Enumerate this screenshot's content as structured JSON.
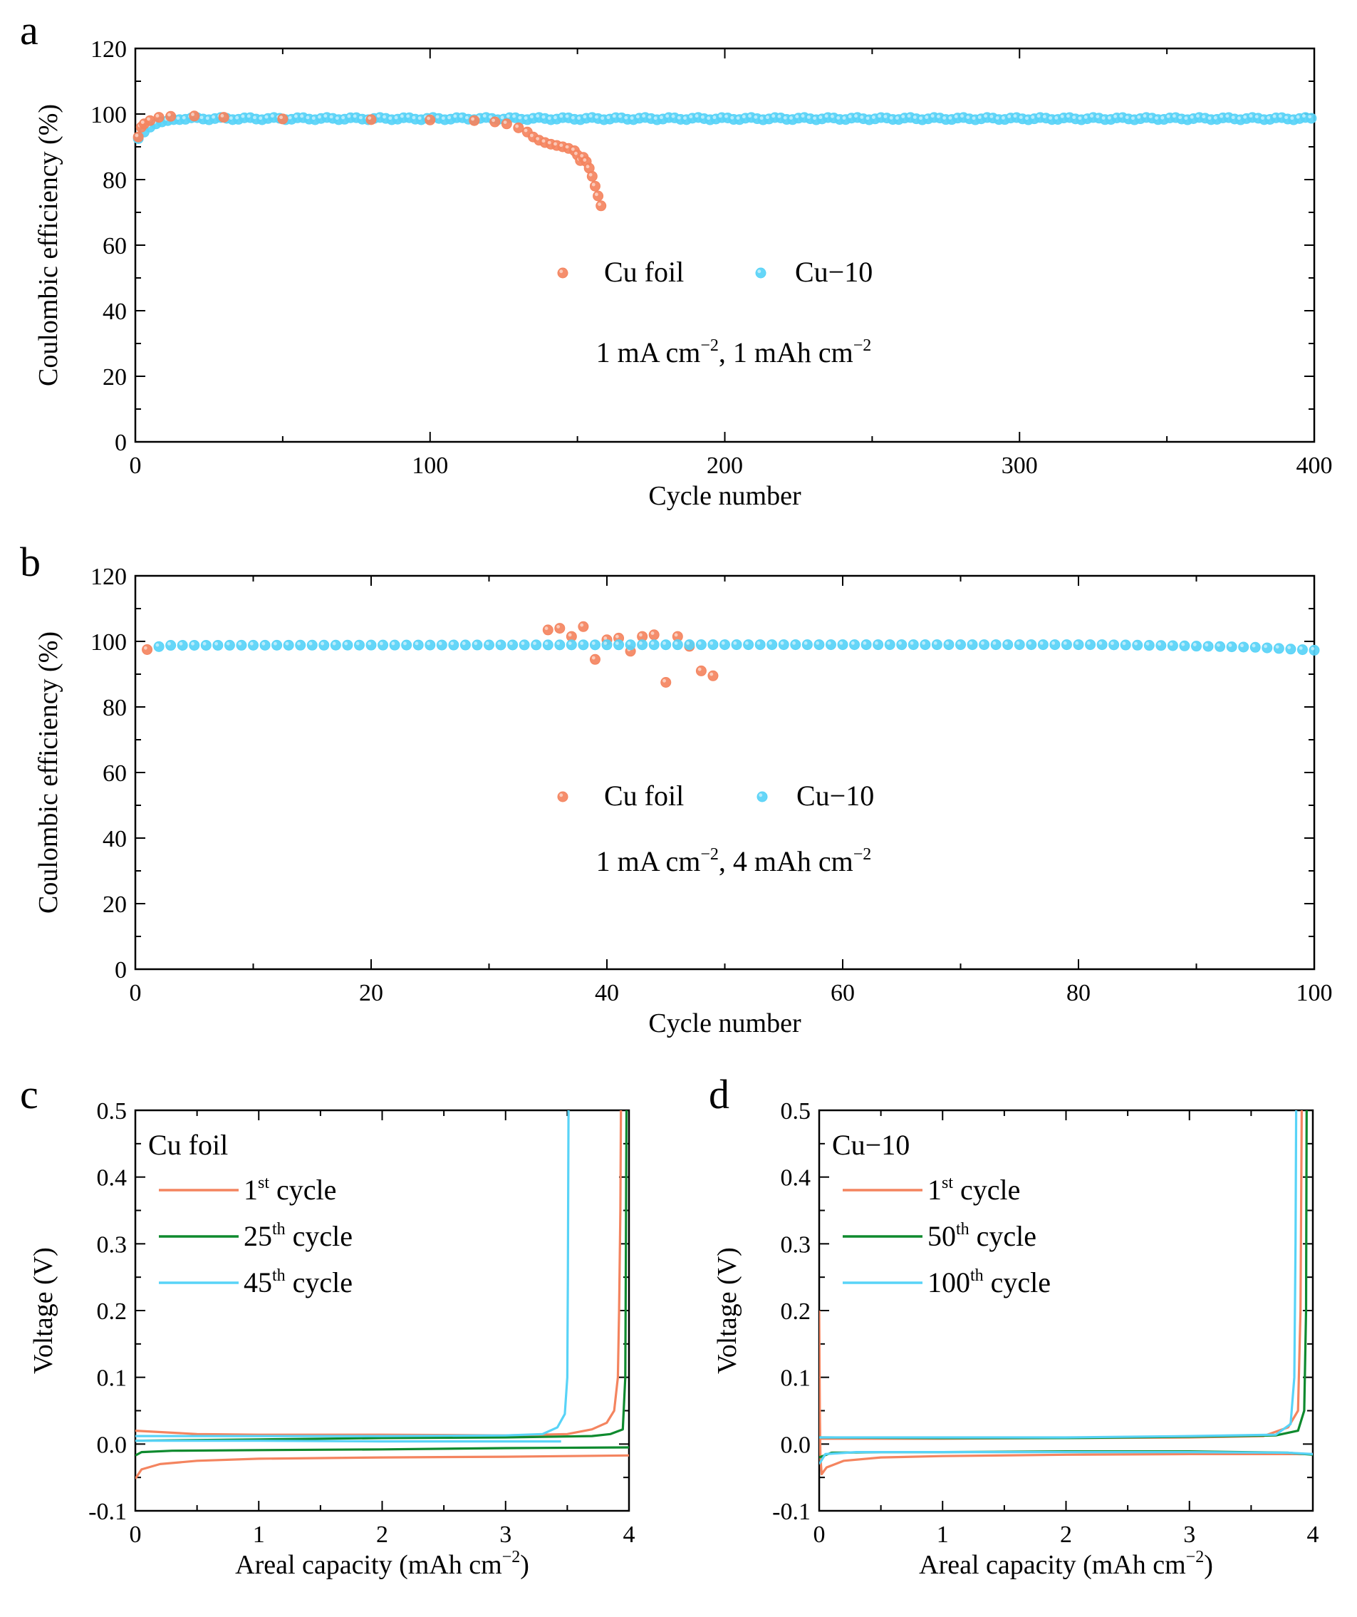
{
  "colors": {
    "cu_foil": "#F4845F",
    "cu10": "#58D3F7",
    "green": "#0E8A2E",
    "axis": "#000000"
  },
  "chart_data": [
    {
      "panel": "a",
      "type": "scatter",
      "xlabel": "Cycle number",
      "ylabel": "Coulombic efficiency (%)",
      "xlim": [
        0,
        400
      ],
      "ylim": [
        0,
        120
      ],
      "xticks": [
        0,
        100,
        200,
        300,
        400
      ],
      "yticks": [
        0,
        20,
        40,
        60,
        80,
        100,
        120
      ],
      "annotation": {
        "main": "1 mA  cm",
        "sup1": "−2",
        "mid": ", 1 mAh  cm",
        "sup2": "−2"
      },
      "legend": [
        "Cu foil",
        "Cu−10"
      ],
      "series": [
        {
          "name": "Cu foil",
          "x": [
            1,
            2,
            3,
            5,
            8,
            12,
            20,
            30,
            50,
            80,
            100,
            115,
            122,
            126,
            130,
            133,
            135,
            137,
            139,
            141,
            143,
            145,
            147,
            149,
            150,
            151,
            152,
            153,
            154,
            155,
            156,
            157,
            158
          ],
          "y": [
            93,
            96,
            97,
            98,
            99,
            99.3,
            99.4,
            99,
            98.5,
            98.3,
            98.2,
            98,
            97.6,
            97,
            95.8,
            94.5,
            93,
            92,
            91.3,
            90.8,
            90.4,
            90,
            89.5,
            88.8,
            87.5,
            85.8,
            86.8,
            85.5,
            83.5,
            81,
            78,
            75,
            72
          ]
        },
        {
          "name": "Cu−10",
          "x_start": 1,
          "x_end": 400,
          "x_step": 2,
          "y_start": [
            92.5,
            94.5,
            96,
            97,
            97.6,
            98,
            98.3
          ],
          "y_plateau": 98.6
        }
      ]
    },
    {
      "panel": "b",
      "type": "scatter",
      "xlabel": "Cycle number",
      "ylabel": "Coulombic efficiency (%)",
      "xlim": [
        0,
        100
      ],
      "ylim": [
        0,
        120
      ],
      "xticks": [
        0,
        20,
        40,
        60,
        80,
        100
      ],
      "yticks": [
        0,
        20,
        40,
        60,
        80,
        100,
        120
      ],
      "annotation": {
        "main": "1 mA  cm",
        "sup1": "−2",
        "mid": ", 4 mAh  cm",
        "sup2": "−2"
      },
      "legend": [
        "Cu foil",
        "Cu−10"
      ],
      "series": [
        {
          "name": "Cu foil",
          "x": [
            1,
            35,
            36,
            37,
            38,
            39,
            40,
            41,
            42,
            43,
            44,
            45,
            46,
            47,
            48,
            49
          ],
          "y": [
            97.5,
            103.5,
            104,
            101.5,
            104.5,
            94.5,
            100.5,
            101,
            97,
            101.5,
            102,
            87.5,
            101.5,
            98.5,
            91,
            89.5
          ]
        },
        {
          "name": "Cu−10",
          "x_start": 1,
          "x_end": 100,
          "x_step": 1,
          "y_profile": [
            [
              1,
              98.0
            ],
            [
              3,
              98.8
            ],
            [
              50,
              99.0
            ],
            [
              82,
              99.0
            ],
            [
              88,
              98.7
            ],
            [
              95,
              98.2
            ],
            [
              100,
              97.3
            ]
          ]
        }
      ]
    },
    {
      "panel": "c",
      "type": "line",
      "title": "Cu foil",
      "xlabel": "Areal capacity (mAh cm",
      "xlabel_sup": "−2",
      "xlabel_end": ")",
      "ylabel": "Voltage (V)",
      "xlim": [
        0,
        4
      ],
      "ylim": [
        -0.1,
        0.5
      ],
      "xticks": [
        0,
        1,
        2,
        3,
        4
      ],
      "yticks": [
        -0.1,
        0.0,
        0.1,
        0.2,
        0.3,
        0.4,
        0.5
      ],
      "ytick_labels": [
        "-0.1",
        "0.0",
        "0.1",
        "0.2",
        "0.3",
        "0.4",
        "0.5"
      ],
      "series": [
        {
          "name": "1st cycle",
          "label_num": "1",
          "label_sup": "st",
          "label_rest": " cycle",
          "color_key": "cu_foil",
          "discharge": [
            [
              0,
              -0.052
            ],
            [
              0.05,
              -0.038
            ],
            [
              0.2,
              -0.03
            ],
            [
              0.5,
              -0.025
            ],
            [
              1,
              -0.022
            ],
            [
              2,
              -0.02
            ],
            [
              3,
              -0.019
            ],
            [
              4,
              -0.017
            ]
          ],
          "charge": [
            [
              0,
              0.02
            ],
            [
              0.2,
              0.018
            ],
            [
              0.5,
              0.015
            ],
            [
              1,
              0.014
            ],
            [
              2,
              0.014
            ],
            [
              3,
              0.013
            ],
            [
              3.5,
              0.015
            ],
            [
              3.7,
              0.022
            ],
            [
              3.82,
              0.032
            ],
            [
              3.88,
              0.05
            ],
            [
              3.91,
              0.1
            ],
            [
              3.92,
              0.2
            ],
            [
              3.93,
              0.35
            ],
            [
              3.935,
              0.5
            ]
          ]
        },
        {
          "name": "25th cycle",
          "label_num": "25",
          "label_sup": "th",
          "label_rest": " cycle",
          "color_key": "green",
          "discharge": [
            [
              0,
              -0.017
            ],
            [
              0.05,
              -0.012
            ],
            [
              0.3,
              -0.01
            ],
            [
              1,
              -0.009
            ],
            [
              2,
              -0.008
            ],
            [
              3,
              -0.006
            ],
            [
              4,
              -0.005
            ]
          ],
          "charge": [
            [
              0,
              0.005
            ],
            [
              1,
              0.007
            ],
            [
              2,
              0.009
            ],
            [
              3,
              0.01
            ],
            [
              3.7,
              0.012
            ],
            [
              3.85,
              0.015
            ],
            [
              3.95,
              0.022
            ],
            [
              3.97,
              0.1
            ],
            [
              3.975,
              0.3
            ],
            [
              3.98,
              0.5
            ]
          ]
        },
        {
          "name": "45th cycle",
          "label_num": "45",
          "label_sup": "th",
          "label_rest": " cycle",
          "color_key": "cu10",
          "discharge": [
            [
              0,
              0.005
            ],
            [
              1,
              0.005
            ],
            [
              2,
              0.004
            ],
            [
              3,
              0.004
            ],
            [
              3.45,
              0.004
            ]
          ],
          "charge": [
            [
              0,
              0.012
            ],
            [
              1,
              0.012
            ],
            [
              2,
              0.012
            ],
            [
              3,
              0.013
            ],
            [
              3.3,
              0.015
            ],
            [
              3.42,
              0.025
            ],
            [
              3.48,
              0.045
            ],
            [
              3.5,
              0.1
            ],
            [
              3.505,
              0.25
            ],
            [
              3.51,
              0.5
            ]
          ]
        }
      ]
    },
    {
      "panel": "d",
      "type": "line",
      "title": "Cu−10",
      "xlabel": "Areal capacity (mAh cm",
      "xlabel_sup": "−2",
      "xlabel_end": ")",
      "ylabel": "Voltage (V)",
      "xlim": [
        0,
        4
      ],
      "ylim": [
        -0.1,
        0.5
      ],
      "xticks": [
        0,
        1,
        2,
        3,
        4
      ],
      "yticks": [
        -0.1,
        0.0,
        0.1,
        0.2,
        0.3,
        0.4,
        0.5
      ],
      "ytick_labels": [
        "-0.1",
        "0.0",
        "0.1",
        "0.2",
        "0.3",
        "0.4",
        "0.5"
      ],
      "series": [
        {
          "name": "1st cycle",
          "label_num": "1",
          "label_sup": "st",
          "label_rest": " cycle",
          "color_key": "cu_foil",
          "discharge": [
            [
              0,
              0.2
            ],
            [
              0.005,
              0.05
            ],
            [
              0.01,
              -0.02
            ],
            [
              0.02,
              -0.045
            ],
            [
              0.06,
              -0.035
            ],
            [
              0.2,
              -0.025
            ],
            [
              0.5,
              -0.02
            ],
            [
              1,
              -0.018
            ],
            [
              2,
              -0.016
            ],
            [
              3,
              -0.015
            ],
            [
              4,
              -0.015
            ]
          ],
          "charge": [
            [
              0,
              0.008
            ],
            [
              1,
              0.008
            ],
            [
              2,
              0.009
            ],
            [
              3,
              0.01
            ],
            [
              3.6,
              0.012
            ],
            [
              3.8,
              0.025
            ],
            [
              3.88,
              0.05
            ],
            [
              3.9,
              0.2
            ],
            [
              3.91,
              0.5
            ]
          ]
        },
        {
          "name": "50th cycle",
          "label_num": "50",
          "label_sup": "th",
          "label_rest": " cycle",
          "color_key": "green",
          "discharge": [
            [
              0,
              -0.02
            ],
            [
              0.1,
              -0.013
            ],
            [
              0.5,
              -0.012
            ],
            [
              1,
              -0.012
            ],
            [
              2,
              -0.011
            ],
            [
              3,
              -0.011
            ],
            [
              3.8,
              -0.013
            ],
            [
              4,
              -0.016
            ]
          ],
          "charge": [
            [
              0,
              0.01
            ],
            [
              1,
              0.009
            ],
            [
              2,
              0.009
            ],
            [
              3,
              0.011
            ],
            [
              3.7,
              0.013
            ],
            [
              3.88,
              0.02
            ],
            [
              3.93,
              0.05
            ],
            [
              3.945,
              0.2
            ],
            [
              3.95,
              0.5
            ]
          ]
        },
        {
          "name": "100th cycle",
          "label_num": "100",
          "label_sup": "th",
          "label_rest": " cycle",
          "color_key": "cu10",
          "discharge": [
            [
              0,
              -0.03
            ],
            [
              0.05,
              -0.015
            ],
            [
              0.3,
              -0.012
            ],
            [
              1,
              -0.012
            ],
            [
              2,
              -0.012
            ],
            [
              3,
              -0.012
            ],
            [
              3.8,
              -0.013
            ],
            [
              4,
              -0.015
            ]
          ],
          "charge": [
            [
              0,
              0.01
            ],
            [
              1,
              0.01
            ],
            [
              2,
              0.01
            ],
            [
              3,
              0.012
            ],
            [
              3.7,
              0.014
            ],
            [
              3.82,
              0.03
            ],
            [
              3.85,
              0.1
            ],
            [
              3.86,
              0.3
            ],
            [
              3.865,
              0.5
            ]
          ]
        }
      ]
    }
  ]
}
